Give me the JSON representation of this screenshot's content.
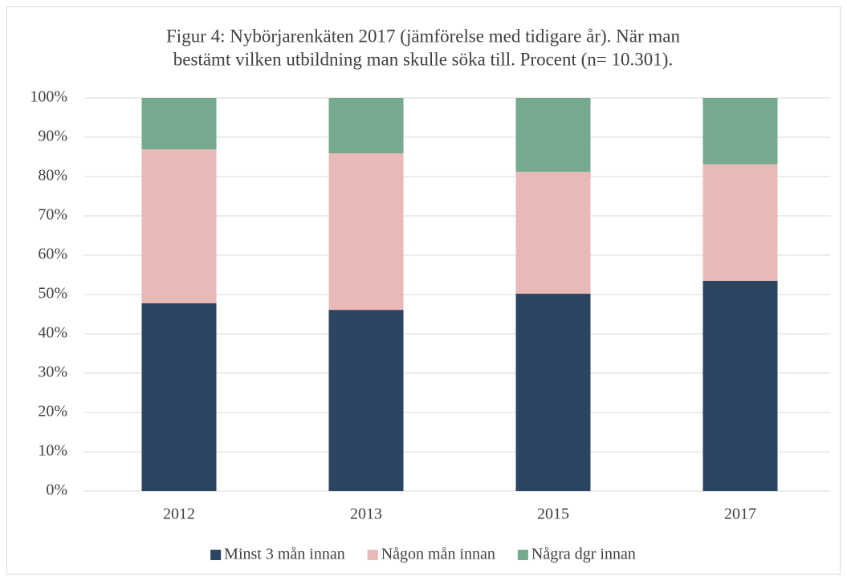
{
  "chart_data": {
    "type": "stacked_bar",
    "title": [
      "Figur 4: Nybörjarenkäten 2017 (jämförelse med tidigare år). När man",
      "bestämt vilken utbildning man skulle söka till. Procent (n= 10.301)."
    ],
    "categories": [
      "2012",
      "2013",
      "2015",
      "2017"
    ],
    "series": [
      {
        "name": "Minst 3 mån innan",
        "color": "#2c4563",
        "values": [
          47.8,
          46.1,
          50.2,
          53.5
        ]
      },
      {
        "name": "Någon mån innan",
        "color": "#e9b9b7",
        "values": [
          39.1,
          39.8,
          31.0,
          29.6
        ]
      },
      {
        "name": "Några dgr innan",
        "color": "#76a98e",
        "values": [
          13.1,
          14.1,
          18.8,
          16.9
        ]
      }
    ],
    "ylim": [
      0,
      100
    ],
    "yticks": [
      {
        "value": 0,
        "label": "0%"
      },
      {
        "value": 10,
        "label": "10%"
      },
      {
        "value": 20,
        "label": "20%"
      },
      {
        "value": 30,
        "label": "30%"
      },
      {
        "value": 40,
        "label": "40%"
      },
      {
        "value": 50,
        "label": "50%"
      },
      {
        "value": 60,
        "label": "60%"
      },
      {
        "value": 70,
        "label": "70%"
      },
      {
        "value": 80,
        "label": "80%"
      },
      {
        "value": 90,
        "label": "90%"
      },
      {
        "value": 100,
        "label": "100%"
      }
    ],
    "grid": true,
    "legend": "bottom"
  }
}
